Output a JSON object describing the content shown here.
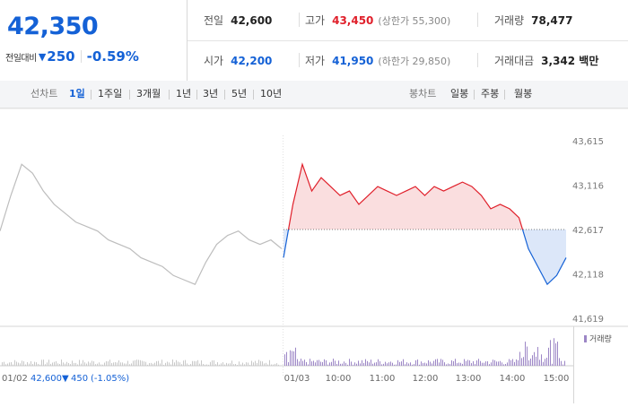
{
  "quote": {
    "current_price": "42,350",
    "change_label": "전일대비",
    "change_arrow": "▼",
    "change_amount": "250",
    "change_percent": "-0.59%"
  },
  "stats": {
    "prev_close_label": "전일",
    "prev_close": "42,600",
    "high_label": "고가",
    "high": "43,450",
    "upper_limit": "(상한가 55,300)",
    "volume_label": "거래량",
    "volume": "78,477",
    "open_label": "시가",
    "open": "42,200",
    "low_label": "저가",
    "low": "41,950",
    "lower_limit": "(하한가 29,850)",
    "amount_label": "거래대금",
    "amount": "3,342 백만"
  },
  "toolbar": {
    "line_chart_label": "선차트",
    "periods": [
      "1일",
      "1주일",
      "3개월",
      "1년",
      "3년",
      "5년",
      "10년"
    ],
    "active_period": "1일",
    "candle_label": "봉차트",
    "candles": [
      "일봉",
      "주봉",
      "월봉"
    ]
  },
  "colors": {
    "up": "#e0202b",
    "down": "#1461d6",
    "previous_day_line": "#bdbdbd",
    "volume": "#9c86c6"
  },
  "chart_data": {
    "type": "line",
    "y_ticks": [
      "43,615",
      "43,116",
      "42,617",
      "42,118",
      "41,619"
    ],
    "ylim": [
      41619,
      43615
    ],
    "prev_close_ref": 42617,
    "x_labels": [
      "01/03",
      "10:00",
      "11:00",
      "12:00",
      "13:00",
      "14:00",
      "15:00"
    ],
    "prev_day_series_values": [
      42600,
      43000,
      43350,
      43250,
      43050,
      42900,
      42800,
      42700,
      42650,
      42600,
      42500,
      42450,
      42400,
      42300,
      42250,
      42200,
      42100,
      42050,
      42000,
      42250,
      42450,
      42550,
      42600,
      42500,
      42450,
      42500,
      42400
    ],
    "today_series_values": [
      42300,
      42900,
      43350,
      43050,
      43200,
      43100,
      43000,
      43050,
      42900,
      43000,
      43100,
      43050,
      43000,
      43050,
      43100,
      43000,
      43100,
      43050,
      43100,
      43150,
      43100,
      43000,
      42850,
      42900,
      42850,
      42750,
      42400,
      42200,
      42000,
      42100,
      42300
    ],
    "volume_legend": "거래량",
    "prev_day_footer": {
      "date": "01/02",
      "close": "42,600",
      "arrow": "▼",
      "change": "450",
      "pct": "(-1.05%)"
    }
  }
}
